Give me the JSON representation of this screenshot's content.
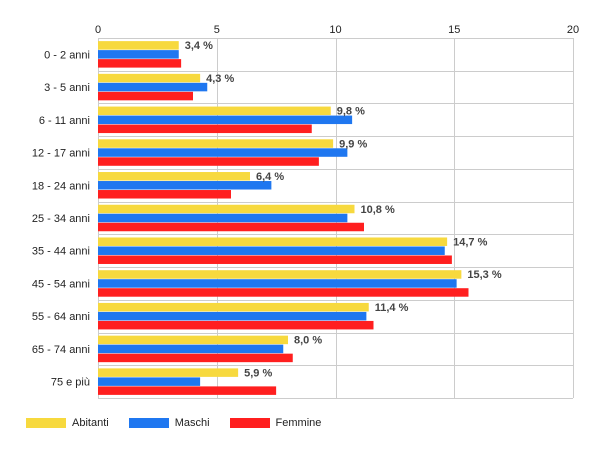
{
  "chart_data": {
    "type": "bar",
    "orientation": "horizontal",
    "categories": [
      "0 - 2 anni",
      "3 - 5 anni",
      "6 - 11 anni",
      "12 - 17 anni",
      "18 - 24 anni",
      "25 - 34 anni",
      "35 - 44 anni",
      "45 - 54 anni",
      "55 - 64 anni",
      "65 - 74 anni",
      "75 e più"
    ],
    "series": [
      {
        "name": "Abitanti",
        "color": "#f7d93e",
        "values": [
          3.4,
          4.3,
          9.8,
          9.9,
          6.4,
          10.8,
          14.7,
          15.3,
          11.4,
          8.0,
          5.9
        ]
      },
      {
        "name": "Maschi",
        "color": "#1f77f0",
        "values": [
          3.4,
          4.6,
          10.7,
          10.5,
          7.3,
          10.5,
          14.6,
          15.1,
          11.3,
          7.8,
          4.3
        ]
      },
      {
        "name": "Femmine",
        "color": "#ff1f1f",
        "values": [
          3.5,
          4.0,
          9.0,
          9.3,
          5.6,
          11.2,
          14.9,
          15.6,
          11.6,
          8.2,
          7.5
        ]
      }
    ],
    "data_labels": [
      "3,4 %",
      "4,3 %",
      "9,8 %",
      "9,9 %",
      "6,4 %",
      "10,8 %",
      "14,7 %",
      "15,3 %",
      "11,4 %",
      "8,0 %",
      "5,9 %"
    ],
    "x_ticks": [
      0,
      5,
      10,
      15,
      20
    ],
    "xlim": [
      0,
      20
    ],
    "grid": true,
    "legend_position": "bottom-left",
    "title": "",
    "xlabel": "",
    "ylabel": ""
  }
}
